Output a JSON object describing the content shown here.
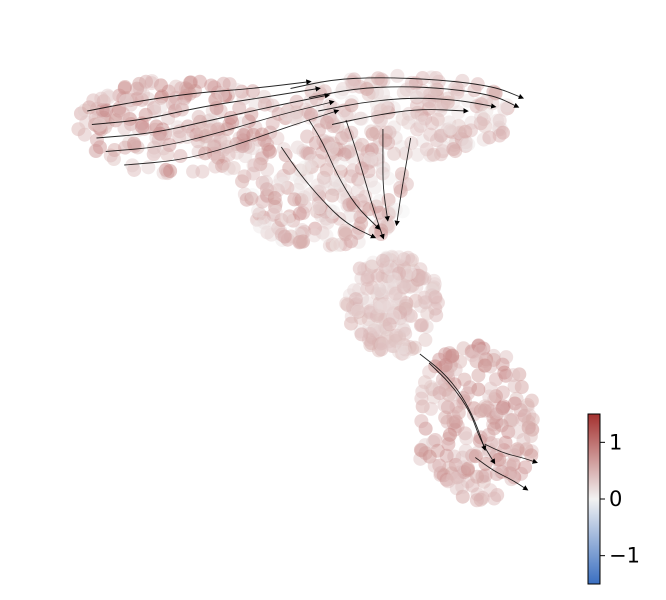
{
  "chart_data": {
    "type": "scatter",
    "title": "",
    "xlabel": "",
    "ylabel": "",
    "axes_visible": false,
    "grid": false,
    "overlay": "velocity-streamlines",
    "colormap": {
      "name": "blue-white-red",
      "low_color": "#3a6fc1",
      "mid_color": "#f2f2f2",
      "high_color": "#a4312f",
      "vmin": -1.5,
      "vmax": 1.5
    },
    "colorbar": {
      "placement": "bottom-right",
      "ticks": [
        {
          "value": 1,
          "label": "1"
        },
        {
          "value": 0,
          "label": "0"
        },
        {
          "value": -1,
          "label": "−1"
        }
      ]
    },
    "cloud_regions": [
      {
        "name": "left-lobe",
        "x_range": [
          0.0,
          0.45
        ],
        "y_range": [
          0.78,
          0.99
        ],
        "value_range": [
          0.2,
          0.9
        ]
      },
      {
        "name": "top-dome",
        "x_range": [
          0.45,
          0.95
        ],
        "y_range": [
          0.82,
          1.0
        ],
        "value_range": [
          0.1,
          0.7
        ]
      },
      {
        "name": "center-body",
        "x_range": [
          0.35,
          0.72
        ],
        "y_range": [
          0.62,
          0.85
        ],
        "value_range": [
          0.0,
          0.8
        ]
      },
      {
        "name": "neck",
        "x_range": [
          0.58,
          0.78
        ],
        "y_range": [
          0.38,
          0.6
        ],
        "value_range": [
          0.1,
          0.6
        ]
      },
      {
        "name": "lower-stem",
        "x_range": [
          0.73,
          0.99
        ],
        "y_range": [
          0.05,
          0.4
        ],
        "value_range": [
          0.3,
          0.9
        ]
      }
    ],
    "streamlines": [
      {
        "name": "left-band-1",
        "points": [
          [
            0.02,
            0.92
          ],
          [
            0.12,
            0.94
          ],
          [
            0.25,
            0.96
          ],
          [
            0.38,
            0.97
          ],
          [
            0.5,
            0.985
          ]
        ]
      },
      {
        "name": "left-band-2",
        "points": [
          [
            0.03,
            0.89
          ],
          [
            0.14,
            0.9
          ],
          [
            0.27,
            0.93
          ],
          [
            0.4,
            0.95
          ],
          [
            0.52,
            0.97
          ]
        ]
      },
      {
        "name": "left-band-3",
        "points": [
          [
            0.04,
            0.86
          ],
          [
            0.16,
            0.87
          ],
          [
            0.29,
            0.9
          ],
          [
            0.42,
            0.93
          ],
          [
            0.54,
            0.955
          ]
        ]
      },
      {
        "name": "left-band-4",
        "points": [
          [
            0.06,
            0.83
          ],
          [
            0.18,
            0.84
          ],
          [
            0.3,
            0.87
          ],
          [
            0.43,
            0.91
          ],
          [
            0.55,
            0.94
          ]
        ]
      },
      {
        "name": "left-band-5",
        "points": [
          [
            0.1,
            0.8
          ],
          [
            0.22,
            0.81
          ],
          [
            0.33,
            0.84
          ],
          [
            0.44,
            0.88
          ],
          [
            0.56,
            0.92
          ]
        ]
      },
      {
        "name": "top-arc-1",
        "points": [
          [
            0.46,
            0.97
          ],
          [
            0.55,
            0.99
          ],
          [
            0.65,
            0.995
          ],
          [
            0.78,
            0.99
          ],
          [
            0.9,
            0.975
          ],
          [
            0.96,
            0.95
          ]
        ]
      },
      {
        "name": "top-arc-2",
        "points": [
          [
            0.5,
            0.95
          ],
          [
            0.6,
            0.97
          ],
          [
            0.7,
            0.975
          ],
          [
            0.8,
            0.97
          ],
          [
            0.9,
            0.955
          ],
          [
            0.95,
            0.93
          ]
        ]
      },
      {
        "name": "top-arc-3",
        "points": [
          [
            0.52,
            0.92
          ],
          [
            0.62,
            0.94
          ],
          [
            0.72,
            0.95
          ],
          [
            0.82,
            0.945
          ],
          [
            0.9,
            0.93
          ]
        ]
      },
      {
        "name": "top-arc-4",
        "points": [
          [
            0.55,
            0.89
          ],
          [
            0.64,
            0.91
          ],
          [
            0.74,
            0.925
          ],
          [
            0.84,
            0.92
          ]
        ]
      },
      {
        "name": "center-flow-1",
        "points": [
          [
            0.5,
            0.9
          ],
          [
            0.53,
            0.85
          ],
          [
            0.56,
            0.78
          ],
          [
            0.6,
            0.71
          ],
          [
            0.65,
            0.66
          ]
        ]
      },
      {
        "name": "center-flow-2",
        "points": [
          [
            0.58,
            0.9
          ],
          [
            0.6,
            0.84
          ],
          [
            0.62,
            0.77
          ],
          [
            0.64,
            0.7
          ],
          [
            0.66,
            0.64
          ]
        ]
      },
      {
        "name": "center-flow-3",
        "points": [
          [
            0.66,
            0.88
          ],
          [
            0.66,
            0.82
          ],
          [
            0.66,
            0.75
          ],
          [
            0.67,
            0.68
          ]
        ]
      },
      {
        "name": "center-flow-4",
        "points": [
          [
            0.44,
            0.84
          ],
          [
            0.48,
            0.78
          ],
          [
            0.53,
            0.72
          ],
          [
            0.58,
            0.67
          ],
          [
            0.64,
            0.64
          ]
        ]
      },
      {
        "name": "center-flow-5",
        "points": [
          [
            0.72,
            0.86
          ],
          [
            0.71,
            0.8
          ],
          [
            0.7,
            0.74
          ],
          [
            0.69,
            0.67
          ]
        ]
      },
      {
        "name": "stem-flow-1",
        "points": [
          [
            0.74,
            0.38
          ],
          [
            0.79,
            0.34
          ],
          [
            0.83,
            0.29
          ],
          [
            0.86,
            0.23
          ],
          [
            0.88,
            0.17
          ]
        ]
      },
      {
        "name": "stem-flow-2",
        "points": [
          [
            0.76,
            0.36
          ],
          [
            0.81,
            0.31
          ],
          [
            0.85,
            0.25
          ],
          [
            0.87,
            0.19
          ],
          [
            0.9,
            0.14
          ]
        ]
      },
      {
        "name": "stem-flow-3",
        "points": [
          [
            0.86,
            0.15
          ],
          [
            0.9,
            0.12
          ],
          [
            0.94,
            0.1
          ],
          [
            0.97,
            0.08
          ]
        ]
      },
      {
        "name": "stem-flow-4",
        "points": [
          [
            0.88,
            0.18
          ],
          [
            0.92,
            0.16
          ],
          [
            0.96,
            0.15
          ],
          [
            0.99,
            0.14
          ]
        ]
      }
    ]
  }
}
